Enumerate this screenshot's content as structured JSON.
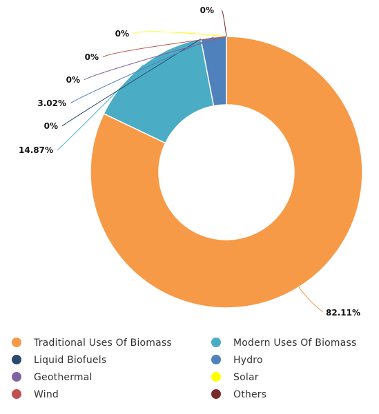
{
  "chart_data": {
    "type": "pie",
    "donut": true,
    "legend_position": "bottom",
    "series": [
      {
        "name": "Traditional Uses Of Biomass",
        "value": 82.11,
        "label": "82.11%",
        "color": "#F79A47"
      },
      {
        "name": "Modern Uses Of Biomass",
        "value": 14.87,
        "label": "14.87%",
        "color": "#4AACC5"
      },
      {
        "name": "Liquid Biofuels",
        "value": 0,
        "label": "0%",
        "color": "#2B4A6F"
      },
      {
        "name": "Hydro",
        "value": 3.02,
        "label": "3.02%",
        "color": "#4F81BD"
      },
      {
        "name": "Geothermal",
        "value": 0,
        "label": "0%",
        "color": "#8064A2"
      },
      {
        "name": "Solar",
        "value": 0,
        "label": "0%",
        "color": "#FFFF00"
      },
      {
        "name": "Wind",
        "value": 0,
        "label": "0%",
        "color": "#C0504D"
      },
      {
        "name": "Others",
        "value": 0,
        "label": "0%",
        "color": "#772C2A"
      }
    ]
  }
}
